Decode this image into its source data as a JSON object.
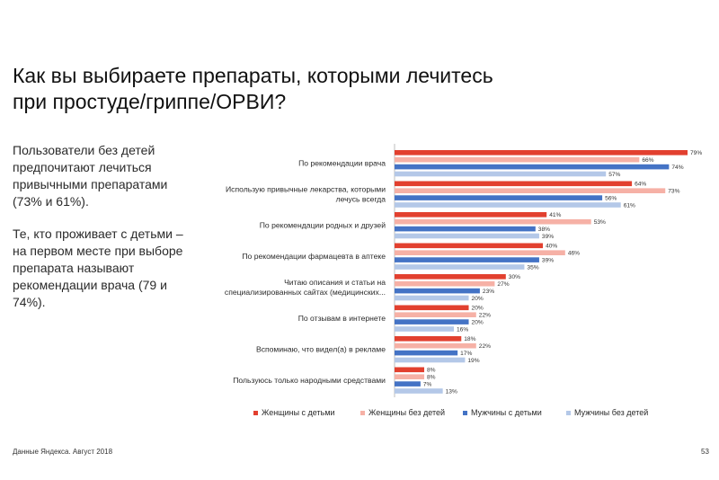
{
  "title": {
    "line1": "Как вы выбираете препараты, которыми лечитесь",
    "line2": "при простуде/гриппе/ОРВИ?"
  },
  "side_text": {
    "paragraph1": "Пользователи без детей предпочитают лечиться привычными препаратами (73% и 61%).",
    "paragraph2": "Те, кто проживает с детьми – на первом месте при выборе препарата называют рекомендации врача (79 и 74%)."
  },
  "footer": {
    "source": "Данные Яндекса. Август 2018",
    "page_number": "53"
  },
  "colors": {
    "women_with_children": "#e2402f",
    "women_without_children": "#f6b1a6",
    "men_with_children": "#4473c5",
    "men_without_children": "#b4c8e8"
  },
  "chart_data": {
    "type": "bar",
    "orientation": "horizontal",
    "categories": [
      [
        "По рекомендации врача"
      ],
      [
        "Использую привычные лекарства, которыми",
        "лечусь всегда"
      ],
      [
        "По рекомендации родных и друзей"
      ],
      [
        "По рекомендации фармацевта в аптеке"
      ],
      [
        "Читаю описания и статьи на",
        "специализированных сайтах (медицинских..."
      ],
      [
        "По отзывам в интернете"
      ],
      [
        "Вспоминаю, что видел(а) в рекламе"
      ],
      [
        "Пользуюсь только народными средствами"
      ]
    ],
    "series": [
      {
        "name": "Женщины с детьми",
        "color_key": "women_with_children",
        "values": [
          79,
          64,
          41,
          40,
          30,
          20,
          18,
          8
        ]
      },
      {
        "name": "Женщины без детей",
        "color_key": "women_without_children",
        "values": [
          66,
          73,
          53,
          46,
          27,
          22,
          22,
          8
        ]
      },
      {
        "name": "Мужчины с детьми",
        "color_key": "men_with_children",
        "values": [
          74,
          56,
          38,
          39,
          23,
          20,
          17,
          7
        ]
      },
      {
        "name": "Мужчины без детей",
        "color_key": "men_without_children",
        "values": [
          57,
          61,
          39,
          35,
          20,
          16,
          19,
          13
        ]
      }
    ],
    "value_suffix": "%",
    "xlim": [
      0,
      79
    ],
    "grid": false,
    "legend_position": "bottom"
  }
}
